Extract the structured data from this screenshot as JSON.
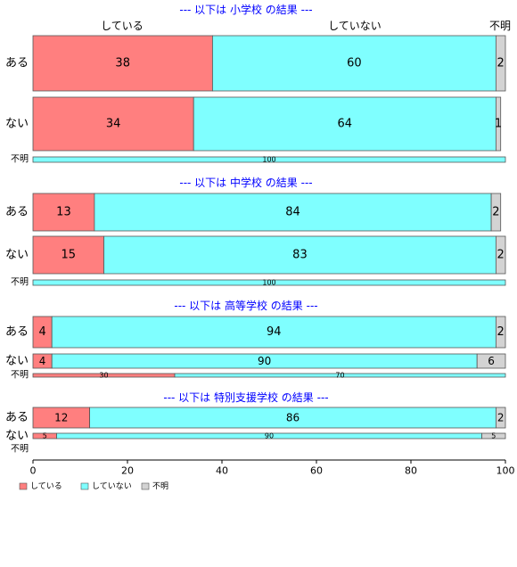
{
  "chart_data": {
    "type": "bar",
    "orientation": "horizontal",
    "stacked": true,
    "colors": {
      "している": "#ff7f7f",
      "していない": "#7fffff",
      "不明": "#d3d3d3"
    },
    "column_headers": [
      "している",
      "していない",
      "不明"
    ],
    "sections": [
      {
        "title": "--- 以下は 小学校 の結果 ---",
        "rows": [
          {
            "label": "ある",
            "values": [
              38,
              60,
              2
            ]
          },
          {
            "label": "ない",
            "values": [
              34,
              64,
              1
            ]
          },
          {
            "label": "不明",
            "values": [
              0,
              100,
              0
            ]
          }
        ]
      },
      {
        "title": "--- 以下は 中学校 の結果 ---",
        "rows": [
          {
            "label": "ある",
            "values": [
              13,
              84,
              2
            ]
          },
          {
            "label": "ない",
            "values": [
              15,
              83,
              2
            ]
          },
          {
            "label": "不明",
            "values": [
              0,
              100,
              0
            ]
          }
        ]
      },
      {
        "title": "--- 以下は 高等学校 の結果 ---",
        "rows": [
          {
            "label": "ある",
            "values": [
              4,
              94,
              2
            ]
          },
          {
            "label": "ない",
            "values": [
              4,
              90,
              6
            ]
          },
          {
            "label": "不明",
            "values": [
              30,
              70,
              0
            ]
          }
        ]
      },
      {
        "title": "--- 以下は 特別支援学校 の結果 ---",
        "rows": [
          {
            "label": "ある",
            "values": [
              12,
              86,
              2
            ]
          },
          {
            "label": "ない",
            "values": [
              5,
              90,
              5
            ]
          },
          {
            "label": "不明",
            "values": []
          }
        ]
      }
    ],
    "x_ticks": [
      "0",
      "20",
      "40",
      "60",
      "80",
      "100"
    ],
    "xlim": [
      0,
      100
    ],
    "legend": {
      "position": "bottom-left",
      "entries": [
        "している",
        "していない",
        "不明"
      ]
    }
  }
}
